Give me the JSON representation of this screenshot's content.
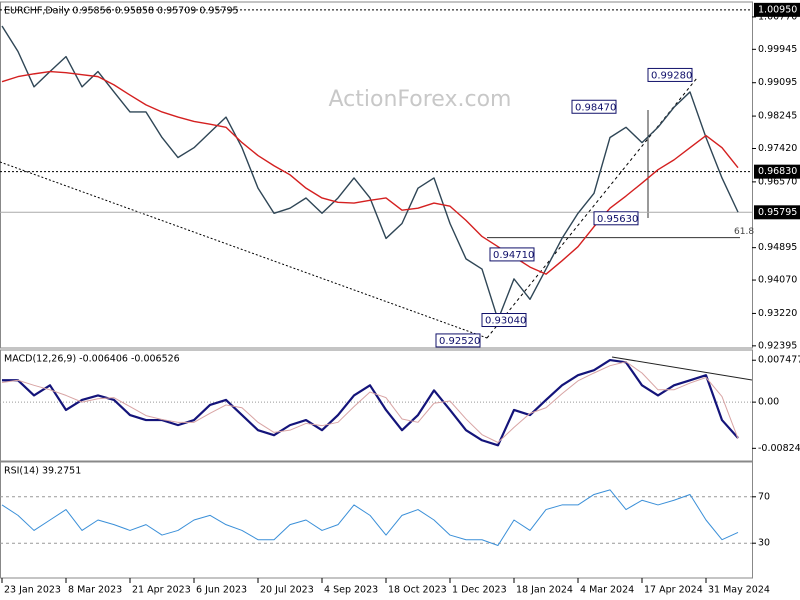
{
  "chart_data": [
    {
      "type": "line",
      "title": "EURCHF,Daily 0.95856 0.95858 0.95709 0.95795",
      "watermark": "ActionForex.com",
      "xlim": [
        -0.125,
        46.875
      ],
      "xticks": [
        {
          "value": 0,
          "label": "23 Jan 2023"
        },
        {
          "value": 4,
          "label": "8 Mar 2023"
        },
        {
          "value": 8,
          "label": "21 Apr 2023"
        },
        {
          "value": 12,
          "label": "6 Jun 2023"
        },
        {
          "value": 16,
          "label": "20 Jul 2023"
        },
        {
          "value": 20,
          "label": "4 Sep 2023"
        },
        {
          "value": 24,
          "label": "18 Oct 2023"
        },
        {
          "value": 28,
          "label": "1 Dec 2023"
        },
        {
          "value": 32,
          "label": "18 Jan 2024"
        },
        {
          "value": 36,
          "label": "4 Mar 2024"
        },
        {
          "value": 40,
          "label": "17 Apr 2024"
        },
        {
          "value": 44,
          "label": "31 May 2024"
        }
      ],
      "ylim": [
        0.9234,
        1.0115
      ],
      "yticks": [
        {
          "value": 1.0077,
          "label": "1.00770"
        },
        {
          "value": 0.99945,
          "label": "0.99945"
        },
        {
          "value": 0.99095,
          "label": "0.99095"
        },
        {
          "value": 0.98245,
          "label": "0.98245"
        },
        {
          "value": 0.9742,
          "label": "0.97420"
        },
        {
          "value": 0.9657,
          "label": "0.96570"
        },
        {
          "value": 0.94895,
          "label": "0.94895"
        },
        {
          "value": 0.9407,
          "label": "0.94070"
        },
        {
          "value": 0.9322,
          "label": "0.93220"
        },
        {
          "value": 0.92395,
          "label": "0.92395"
        }
      ],
      "grid": false,
      "series": [
        {
          "color": "#2f4656",
          "values": [
            1.0054,
            0.9989,
            0.9899,
            0.9938,
            0.9976,
            0.9899,
            0.9938,
            0.9886,
            0.9835,
            0.9835,
            0.977,
            0.9719,
            0.9744,
            0.9783,
            0.9822,
            0.9744,
            0.9641,
            0.9577,
            0.959,
            0.9616,
            0.9577,
            0.9616,
            0.9667,
            0.9616,
            0.9513,
            0.9551,
            0.9641,
            0.9667,
            0.9551,
            0.9461,
            0.9435,
            0.9306,
            0.941,
            0.9358,
            0.9435,
            0.9513,
            0.9577,
            0.9628,
            0.977,
            0.9796,
            0.9757,
            0.9796,
            0.9847,
            0.9886,
            0.977,
            0.9667,
            0.958
          ]
        },
        {
          "color": "#d42020",
          "values": [
            0.9912,
            0.9925,
            0.9932,
            0.9938,
            0.9935,
            0.993,
            0.9925,
            0.9904,
            0.9878,
            0.9853,
            0.9835,
            0.9822,
            0.9811,
            0.9804,
            0.9796,
            0.9757,
            0.9724,
            0.9698,
            0.9675,
            0.9641,
            0.9616,
            0.9605,
            0.9603,
            0.961,
            0.9616,
            0.9585,
            0.959,
            0.9603,
            0.9595,
            0.9559,
            0.9518,
            0.9492,
            0.9466,
            0.944,
            0.9422,
            0.9456,
            0.9492,
            0.9543,
            0.959,
            0.9621,
            0.9654,
            0.9688,
            0.9713,
            0.9744,
            0.9775,
            0.9744,
            0.9693
          ]
        }
      ],
      "levels": [
        {
          "value": 1.0095,
          "label": "1.00950",
          "style": "dotted"
        },
        {
          "value": 0.9683,
          "label": "0.96830",
          "style": "dotted"
        },
        {
          "value": 0.95795,
          "label": "0.95795",
          "style": "solid"
        }
      ],
      "fib": {
        "value": 0.9515,
        "label": "61.8"
      },
      "annotations": [
        {
          "value": 0.9928,
          "label": "0.99280"
        },
        {
          "value": 0.9847,
          "label": "0.98470"
        },
        {
          "value": 0.9563,
          "label": "0.95630"
        },
        {
          "value": 0.9471,
          "label": "0.94710"
        },
        {
          "value": 0.9304,
          "label": "0.93040"
        },
        {
          "value": 0.9252,
          "label": "0.92520"
        }
      ]
    },
    {
      "type": "line",
      "title": "MACD(12,26,9) -0.006406 -0.006526",
      "xlim": [
        -0.125,
        46.875
      ],
      "ylim": [
        -0.0105,
        0.0093
      ],
      "yticks": [
        0.007477,
        {
          "value": 0,
          "label": "0.00"
        },
        -0.00824
      ],
      "zero_line": true,
      "series": [
        {
          "color": "#14147a",
          "width": 2.2,
          "values": [
            0.0039,
            0.0039,
            0.0012,
            0.003,
            -0.0014,
            0.0004,
            0.0012,
            0.0004,
            -0.0023,
            -0.0032,
            -0.0032,
            -0.0041,
            -0.0032,
            -0.0005,
            0.0004,
            -0.0023,
            -0.005,
            -0.0059,
            -0.0041,
            -0.0032,
            -0.005,
            -0.0023,
            0.0012,
            0.003,
            -0.0014,
            -0.005,
            -0.0023,
            0.0021,
            -0.0014,
            -0.005,
            -0.0068,
            -0.0077,
            -0.0014,
            -0.0023,
            0.0004,
            0.003,
            0.0048,
            0.0057,
            0.0075,
            0.0071,
            0.003,
            0.0012,
            0.003,
            0.0039,
            0.0048,
            -0.0032,
            -0.0064
          ]
        },
        {
          "color": "#d8a4a4",
          "width": 1,
          "values": [
            0.0035,
            0.0039,
            0.003,
            0.0022,
            0.0012,
            0.0,
            0.0006,
            0.0008,
            -0.0008,
            -0.0024,
            -0.0031,
            -0.0036,
            -0.0036,
            -0.002,
            -0.0005,
            -0.001,
            -0.0036,
            -0.0054,
            -0.005,
            -0.0038,
            -0.0042,
            -0.0036,
            -0.0008,
            0.0018,
            0.0008,
            -0.003,
            -0.0036,
            -0.0002,
            0.0002,
            -0.003,
            -0.0058,
            -0.0072,
            -0.0045,
            -0.002,
            -0.001,
            0.0015,
            0.0038,
            0.0052,
            0.0065,
            0.0072,
            0.0052,
            0.0022,
            0.0022,
            0.0034,
            0.0044,
            0.001,
            -0.0065
          ]
        }
      ]
    },
    {
      "type": "line",
      "title": "RSI(14) 39.2751",
      "xlim": [
        -0.125,
        46.875
      ],
      "ylim": [
        0,
        100
      ],
      "yticks": [
        70,
        30
      ],
      "grid": true,
      "series": [
        {
          "color": "#3a8fd8",
          "width": 1,
          "values": [
            63,
            54,
            41,
            50,
            59,
            41,
            50,
            46,
            41,
            46,
            37,
            41,
            50,
            54,
            46,
            41,
            33,
            33,
            46,
            50,
            41,
            46,
            63,
            54,
            37,
            54,
            59,
            50,
            37,
            33,
            33,
            28,
            50,
            41,
            59,
            63,
            63,
            72,
            76,
            59,
            67,
            63,
            67,
            72,
            50,
            33,
            39.3
          ]
        }
      ]
    }
  ]
}
